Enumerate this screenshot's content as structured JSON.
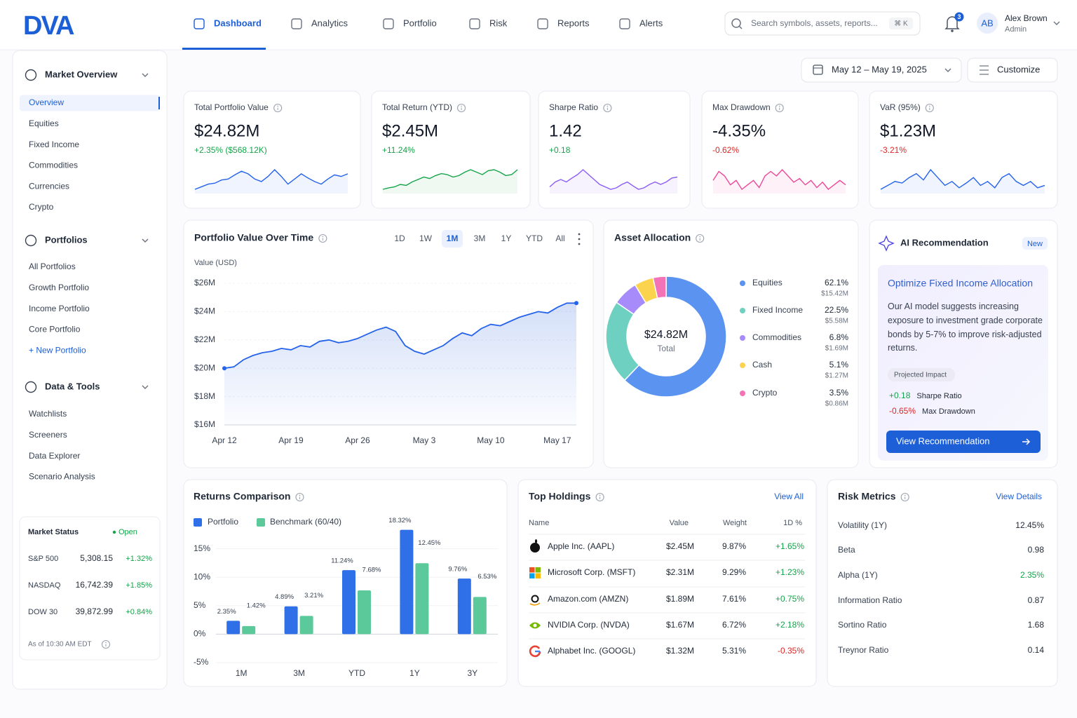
{
  "header": {
    "logo": "DVA",
    "nav": [
      "Dashboard",
      "Analytics",
      "Portfolio",
      "Risk",
      "Reports",
      "Alerts"
    ],
    "search_placeholder": "Search symbols, assets, reports...",
    "shortcut": "⌘ K",
    "notifications": 3,
    "user": {
      "initials": "AB",
      "name": "Alex Brown",
      "role": "Admin"
    }
  },
  "sidebar": {
    "sections": [
      {
        "title": "Market Overview",
        "items": [
          "Overview",
          "Equities",
          "Fixed Income",
          "Commodities",
          "Currencies",
          "Crypto"
        ]
      },
      {
        "title": "Portfolios",
        "items": [
          "All Portfolios",
          "Growth Portfolio",
          "Income Portfolio",
          "Core Portfolio",
          "+ New Portfolio"
        ]
      },
      {
        "title": "Data & Tools",
        "items": [
          "Watchlists",
          "Screeners",
          "Data Explorer",
          "Scenario Analysis"
        ]
      }
    ],
    "market_status": {
      "title": "Market Status",
      "status": "Open",
      "rows": [
        {
          "name": "S&P 500",
          "value": "5,308.15",
          "change": "+1.32%"
        },
        {
          "name": "NASDAQ",
          "value": "16,742.39",
          "change": "+1.85%"
        },
        {
          "name": "DOW 30",
          "value": "39,872.99",
          "change": "+0.84%"
        }
      ],
      "footer": "As of 10:30 AM EDT"
    }
  },
  "toolbar": {
    "date_range": "May 12 – May 19, 2025",
    "customize": "Customize"
  },
  "kpis": [
    {
      "label": "Total Portfolio Value",
      "value": "$24.82M",
      "change": "+2.35% ($568.12K)",
      "color": "#2563eb",
      "trend": [
        3,
        3.5,
        4,
        4.2,
        4.8,
        5,
        5.8,
        6.5,
        6,
        5,
        4.5,
        5.5,
        6.8,
        5.5,
        4,
        5,
        6,
        5.2,
        4.5,
        4,
        5,
        5.8,
        5.5,
        6
      ]
    },
    {
      "label": "Total Return (YTD)",
      "value": "$2.45M",
      "change": "+11.24%",
      "color": "#16a34a",
      "trend": [
        2,
        2.3,
        2.5,
        3,
        2.8,
        3.5,
        4,
        4.5,
        4.2,
        4.8,
        5.2,
        5,
        4.5,
        4.8,
        5.5,
        6,
        5.5,
        5,
        5.8,
        6,
        5.5,
        4.8,
        5,
        6
      ]
    },
    {
      "label": "Sharpe Ratio",
      "value": "1.42",
      "change": "+0.18",
      "color": "#8b5cf6",
      "trend": [
        4,
        5,
        5.5,
        5,
        5.8,
        6.5,
        7.5,
        6.5,
        5.5,
        4.5,
        4,
        3.5,
        3.8,
        4.5,
        5,
        4.2,
        3.5,
        3.8,
        4.5,
        5,
        4.5,
        5,
        5.8,
        6
      ]
    },
    {
      "label": "Max Drawdown",
      "value": "-4.35%",
      "change": "-0.62%",
      "color": "#ec4899",
      "trend": [
        6,
        7,
        6.5,
        5.5,
        6,
        5,
        5.5,
        6,
        5.2,
        6.5,
        7,
        6.5,
        7.2,
        6.5,
        5.8,
        6.2,
        5.5,
        6,
        5.2,
        5.8,
        5,
        5.5,
        6,
        5.5
      ]
    },
    {
      "label": "VaR (95%)",
      "value": "$1.23M",
      "change": "-3.21%",
      "color": "#2563eb",
      "trend": [
        4,
        4.5,
        5,
        4.8,
        5.5,
        6,
        5.2,
        6.5,
        5.5,
        4.5,
        5,
        4.2,
        4.8,
        5.5,
        4.5,
        5,
        4.2,
        5.5,
        6,
        5,
        4.5,
        5,
        4.2,
        4.5
      ]
    }
  ],
  "chart_data": [
    {
      "type": "line",
      "title": "Portfolio Value Over Time",
      "ylabel": "Value (USD)",
      "ranges": [
        "1D",
        "1W",
        "1M",
        "3M",
        "1Y",
        "YTD",
        "All"
      ],
      "color": "#2563eb",
      "categories": [
        "Apr 12",
        null,
        null,
        null,
        null,
        null,
        null,
        "Apr 19",
        null,
        null,
        null,
        null,
        null,
        null,
        "Apr 26",
        null,
        null,
        null,
        null,
        null,
        null,
        "May 3",
        null,
        null,
        null,
        null,
        null,
        null,
        "May 10",
        null,
        null,
        null,
        null,
        null,
        null,
        "May 17",
        null,
        null
      ],
      "values": [
        20.0,
        20.1,
        20.6,
        20.9,
        21.1,
        21.2,
        21.4,
        21.3,
        21.6,
        21.5,
        21.9,
        22.0,
        21.8,
        21.9,
        22.1,
        22.4,
        22.7,
        22.9,
        22.6,
        21.6,
        21.2,
        21.0,
        21.3,
        21.6,
        22.1,
        22.5,
        22.3,
        22.8,
        23.1,
        23.0,
        23.3,
        23.6,
        23.8,
        24.0,
        23.9,
        24.3,
        24.6,
        24.6
      ],
      "ylim": [
        16,
        26
      ],
      "yticks": [
        {
          "value": 16,
          "label": "$16M"
        },
        {
          "value": 18,
          "label": "$18M"
        },
        {
          "value": 20,
          "label": "$20M"
        },
        {
          "value": 22,
          "label": "$22M"
        },
        {
          "value": 24,
          "label": "$24M"
        },
        {
          "value": 26,
          "label": "$26M"
        }
      ],
      "grid": true
    },
    {
      "type": "donut",
      "title": "Asset Allocation",
      "center_label": "$24.82M",
      "center_sublabel": "Total",
      "categories": [
        "Equities",
        "Fixed Income",
        "Commodities",
        "Cash",
        "Crypto"
      ],
      "values": [
        62.1,
        22.5,
        6.8,
        5.1,
        3.5
      ],
      "value_labels": [
        "62.1%",
        "22.5%",
        "6.8%",
        "5.1%",
        "3.5%"
      ],
      "amounts": [
        "$15.42M",
        "$5.58M",
        "$1.69M",
        "$1.27M",
        "$0.86M"
      ],
      "colors": [
        "#5b93f0",
        "#6dd0c1",
        "#a78bfa",
        "#fcd34d",
        "#f472b6"
      ]
    },
    {
      "type": "bar",
      "title": "Returns Comparison",
      "categories": [
        "1M",
        "3M",
        "YTD",
        "1Y",
        "3Y"
      ],
      "series": [
        {
          "name": "Portfolio",
          "color": "#2f6fe8",
          "values": [
            2.35,
            4.89,
            11.24,
            18.32,
            9.76
          ],
          "value_labels": [
            "2.35%",
            "4.89%",
            "11.24%",
            "18.32%",
            "9.76%"
          ]
        },
        {
          "name": "Benchmark (60/40)",
          "color": "#5cc99a",
          "values": [
            1.42,
            3.21,
            7.68,
            12.45,
            6.53
          ],
          "value_labels": [
            "1.42%",
            "3.21%",
            "7.68%",
            "12.45%",
            "6.53%"
          ]
        }
      ],
      "ylim": [
        -5,
        20
      ],
      "yticks": [
        {
          "value": -5,
          "label": "-5%"
        },
        {
          "value": 0,
          "label": "0%"
        },
        {
          "value": 5,
          "label": "5%"
        },
        {
          "value": 10,
          "label": "10%"
        },
        {
          "value": 15,
          "label": "15%"
        }
      ],
      "grid": true
    }
  ],
  "ai_recommendation": {
    "title": "AI Recommendation",
    "badge": "New",
    "heading": "Optimize Fixed Income Allocation",
    "body": "Our AI model suggests increasing exposure to investment grade corporate bonds by 5-7% to improve risk-adjusted returns.",
    "impact_label": "Projected Impact",
    "impacts": [
      {
        "value": "+0.18",
        "label": "Sharpe Ratio"
      },
      {
        "value": "-0.65%",
        "label": "Max Drawdown"
      }
    ],
    "button": "View Recommendation"
  },
  "holdings": {
    "title": "Top Holdings",
    "link": "View All",
    "columns": [
      "Name",
      "Value",
      "Weight",
      "1D %"
    ],
    "rows": [
      {
        "name": "Apple Inc. (AAPL)",
        "value": "$2.45M",
        "weight": "9.87%",
        "change": "+1.65%"
      },
      {
        "name": "Microsoft Corp. (MSFT)",
        "value": "$2.31M",
        "weight": "9.29%",
        "change": "+1.23%"
      },
      {
        "name": "Amazon.com (AMZN)",
        "value": "$1.89M",
        "weight": "7.61%",
        "change": "+0.75%"
      },
      {
        "name": "NVIDIA Corp. (NVDA)",
        "value": "$1.67M",
        "weight": "6.72%",
        "change": "+2.18%"
      },
      {
        "name": "Alphabet Inc. (GOOGL)",
        "value": "$1.32M",
        "weight": "5.31%",
        "change": "-0.35%"
      }
    ]
  },
  "risk_metrics": {
    "title": "Risk Metrics",
    "link": "View Details",
    "rows": [
      {
        "label": "Volatility (1Y)",
        "value": "12.45%"
      },
      {
        "label": "Beta",
        "value": "0.98"
      },
      {
        "label": "Alpha (1Y)",
        "value": "2.35%",
        "color": "#16a34a"
      },
      {
        "label": "Information Ratio",
        "value": "0.87"
      },
      {
        "label": "Sortino Ratio",
        "value": "1.68"
      },
      {
        "label": "Treynor Ratio",
        "value": "0.14"
      }
    ]
  }
}
